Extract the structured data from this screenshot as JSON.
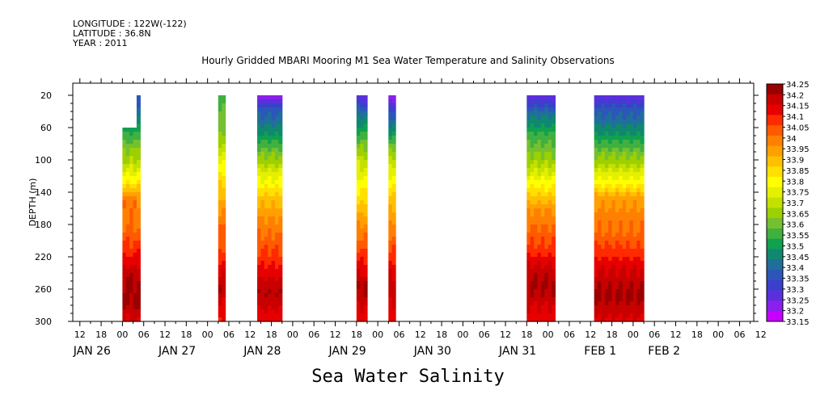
{
  "header": {
    "longitude": "LONGITUDE : 122W(-122)",
    "latitude": "LATITUDE : 36.8N",
    "year": "YEAR : 2011"
  },
  "chart_data": {
    "type": "heatmap",
    "title": "Hourly Gridded MBARI Mooring M1 Sea Water Temperature and Salinity Observations",
    "xlabel": "Sea Water Salinity",
    "ylabel": "DEPTH (m)",
    "x_unit": "hours since Jan 26 00:00",
    "xlim": [
      -14,
      178
    ],
    "ylim": [
      300,
      5
    ],
    "y_inverted": true,
    "y_ticks": [
      20,
      60,
      100,
      140,
      180,
      220,
      260,
      300
    ],
    "x_tick_hours": [
      -12,
      -6,
      0,
      6,
      12,
      18,
      24,
      30,
      36,
      42,
      48,
      54,
      60,
      66,
      72,
      78,
      84,
      90,
      96,
      102,
      108,
      114,
      120,
      126,
      132,
      138,
      144,
      150,
      156,
      162,
      168,
      174
    ],
    "x_tick_labels": [
      "12",
      "18",
      "00",
      "06",
      "12",
      "18",
      "00",
      "06",
      "12",
      "18",
      "00",
      "06",
      "12",
      "18",
      "00",
      "06",
      "12",
      "18",
      "00",
      "06",
      "12",
      "18",
      "00",
      "06",
      "12",
      "18",
      "00",
      "06",
      "12",
      "18",
      "00",
      "06"
    ],
    "extra_tick_label": "12",
    "date_labels": [
      {
        "text": "JAN 26",
        "hour": -12
      },
      {
        "text": "JAN 27",
        "hour": 12
      },
      {
        "text": "JAN 28",
        "hour": 36
      },
      {
        "text": "JAN 29",
        "hour": 60
      },
      {
        "text": "JAN 30",
        "hour": 84
      },
      {
        "text": "JAN 31",
        "hour": 108
      },
      {
        "text": "FEB  1",
        "hour": 132
      },
      {
        "text": "FEB  2",
        "hour": 150
      }
    ],
    "legend_placement": "right",
    "colorbar_labels": [
      "34.25",
      "34.2",
      "34.15",
      "34.1",
      "34.05",
      "34",
      "33.95",
      "33.9",
      "33.85",
      "33.8",
      "33.75",
      "33.7",
      "33.65",
      "33.6",
      "33.55",
      "33.5",
      "33.45",
      "33.4",
      "33.35",
      "33.3",
      "33.25",
      "33.2",
      "33.15"
    ],
    "colorbar_colors": [
      "#9a0000",
      "#c80000",
      "#e60000",
      "#ff2a00",
      "#ff5a00",
      "#ff8000",
      "#ffa000",
      "#ffc000",
      "#ffe000",
      "#ffff00",
      "#e4f000",
      "#c4e000",
      "#9cd000",
      "#74c030",
      "#40b040",
      "#10a050",
      "#108870",
      "#206e9c",
      "#2c56b8",
      "#3a40cc",
      "#5a30dc",
      "#8a20ec",
      "#c800ff"
    ],
    "segments": [
      {
        "start": 0,
        "end": 4,
        "top_depth": 60,
        "profile": [
          [
            60,
            33.5
          ],
          [
            80,
            33.6
          ],
          [
            100,
            33.67
          ],
          [
            125,
            33.8
          ],
          [
            150,
            34.0
          ],
          [
            180,
            34.0
          ],
          [
            210,
            34.08
          ],
          [
            230,
            34.15
          ],
          [
            250,
            34.22
          ],
          [
            280,
            34.2
          ],
          [
            300,
            34.15
          ]
        ]
      },
      {
        "start": 4,
        "end": 5,
        "top_depth": 20,
        "profile": [
          [
            20,
            33.35
          ],
          [
            50,
            33.45
          ],
          [
            80,
            33.6
          ],
          [
            110,
            33.75
          ],
          [
            150,
            33.95
          ],
          [
            200,
            34.05
          ],
          [
            230,
            34.15
          ],
          [
            250,
            34.22
          ],
          [
            280,
            34.2
          ],
          [
            300,
            34.15
          ]
        ]
      },
      {
        "start": 27,
        "end": 29,
        "top_depth": 20,
        "profile": [
          [
            20,
            33.55
          ],
          [
            60,
            33.6
          ],
          [
            100,
            33.75
          ],
          [
            140,
            33.9
          ],
          [
            180,
            34.0
          ],
          [
            210,
            34.05
          ],
          [
            240,
            34.15
          ],
          [
            260,
            34.2
          ],
          [
            280,
            34.15
          ],
          [
            300,
            34.12
          ]
        ]
      },
      {
        "start": 38,
        "end": 45,
        "top_depth": 20,
        "profile": [
          [
            20,
            33.2
          ],
          [
            35,
            33.35
          ],
          [
            60,
            33.45
          ],
          [
            90,
            33.6
          ],
          [
            120,
            33.75
          ],
          [
            150,
            33.9
          ],
          [
            190,
            34.0
          ],
          [
            220,
            34.08
          ],
          [
            245,
            34.15
          ],
          [
            265,
            34.2
          ],
          [
            285,
            34.15
          ],
          [
            300,
            34.12
          ]
        ]
      },
      {
        "start": 66,
        "end": 69,
        "top_depth": 20,
        "profile": [
          [
            20,
            33.25
          ],
          [
            40,
            33.4
          ],
          [
            70,
            33.55
          ],
          [
            100,
            33.7
          ],
          [
            140,
            33.82
          ],
          [
            180,
            33.97
          ],
          [
            210,
            34.05
          ],
          [
            240,
            34.15
          ],
          [
            255,
            34.22
          ],
          [
            280,
            34.15
          ],
          [
            300,
            34.12
          ]
        ]
      },
      {
        "start": 75,
        "end": 77,
        "top_depth": 20,
        "profile": [
          [
            20,
            33.2
          ],
          [
            40,
            33.35
          ],
          [
            70,
            33.5
          ],
          [
            100,
            33.7
          ],
          [
            140,
            33.85
          ],
          [
            180,
            33.97
          ],
          [
            210,
            34.05
          ],
          [
            240,
            34.15
          ],
          [
            260,
            34.2
          ],
          [
            280,
            34.15
          ],
          [
            300,
            34.12
          ]
        ]
      },
      {
        "start": 114,
        "end": 122,
        "top_depth": 20,
        "profile": [
          [
            20,
            33.25
          ],
          [
            40,
            33.4
          ],
          [
            70,
            33.55
          ],
          [
            100,
            33.65
          ],
          [
            130,
            33.8
          ],
          [
            160,
            33.95
          ],
          [
            200,
            34.05
          ],
          [
            230,
            34.15
          ],
          [
            255,
            34.22
          ],
          [
            280,
            34.15
          ],
          [
            300,
            34.12
          ]
        ]
      },
      {
        "start": 133,
        "end": 147,
        "top_depth": 20,
        "profile": [
          [
            20,
            33.25
          ],
          [
            35,
            33.35
          ],
          [
            60,
            33.45
          ],
          [
            90,
            33.6
          ],
          [
            120,
            33.75
          ],
          [
            150,
            33.95
          ],
          [
            190,
            34.02
          ],
          [
            220,
            34.1
          ],
          [
            245,
            34.18
          ],
          [
            265,
            34.22
          ],
          [
            285,
            34.18
          ],
          [
            300,
            34.15
          ]
        ]
      }
    ]
  }
}
